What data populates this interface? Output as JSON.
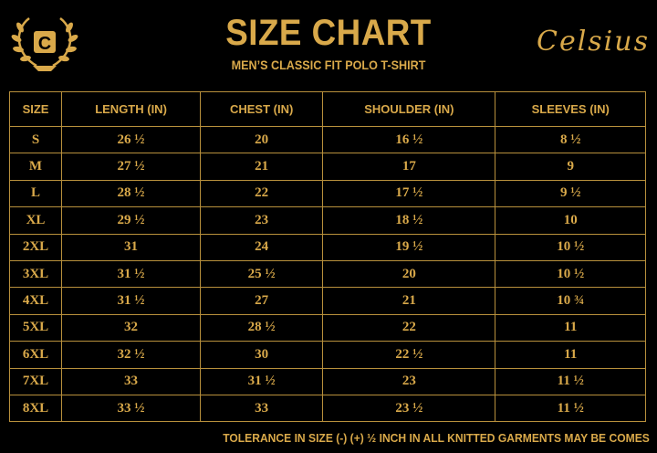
{
  "header": {
    "title": "SIZE CHART",
    "subtitle": "MEN’S CLASSIC FIT POLO T-SHIRT",
    "brand": "Celsius",
    "logo_letter": "C",
    "accent_color": "#d9a94a"
  },
  "table": {
    "columns": [
      "SIZE",
      "LENGTH (IN)",
      "CHEST (IN)",
      "SHOULDER (IN)",
      "SLEEVES (IN)"
    ],
    "rows": [
      [
        "S",
        "26 ½",
        "20",
        "16 ½",
        "8 ½"
      ],
      [
        "M",
        "27 ½",
        "21",
        "17",
        "9"
      ],
      [
        "L",
        "28 ½",
        "22",
        "17 ½",
        "9 ½"
      ],
      [
        "XL",
        "29 ½",
        "23",
        "18 ½",
        "10"
      ],
      [
        "2XL",
        "31",
        "24",
        "19 ½",
        "10 ½"
      ],
      [
        "3XL",
        "31 ½",
        "25 ½",
        "20",
        "10 ½"
      ],
      [
        "4XL",
        "31 ½",
        "27",
        "21",
        "10 ¾"
      ],
      [
        "5XL",
        "32",
        "28 ½",
        "22",
        "11"
      ],
      [
        "6XL",
        "32 ½",
        "30",
        "22 ½",
        "11"
      ],
      [
        "7XL",
        "33",
        "31 ½",
        "23",
        "11 ½"
      ],
      [
        "8XL",
        "33 ½",
        "33",
        "23 ½",
        "11 ½"
      ]
    ]
  },
  "footer": {
    "note": "TOLERANCE IN SIZE (-) (+) ½ INCH IN ALL KNITTED GARMENTS MAY BE COMES"
  }
}
